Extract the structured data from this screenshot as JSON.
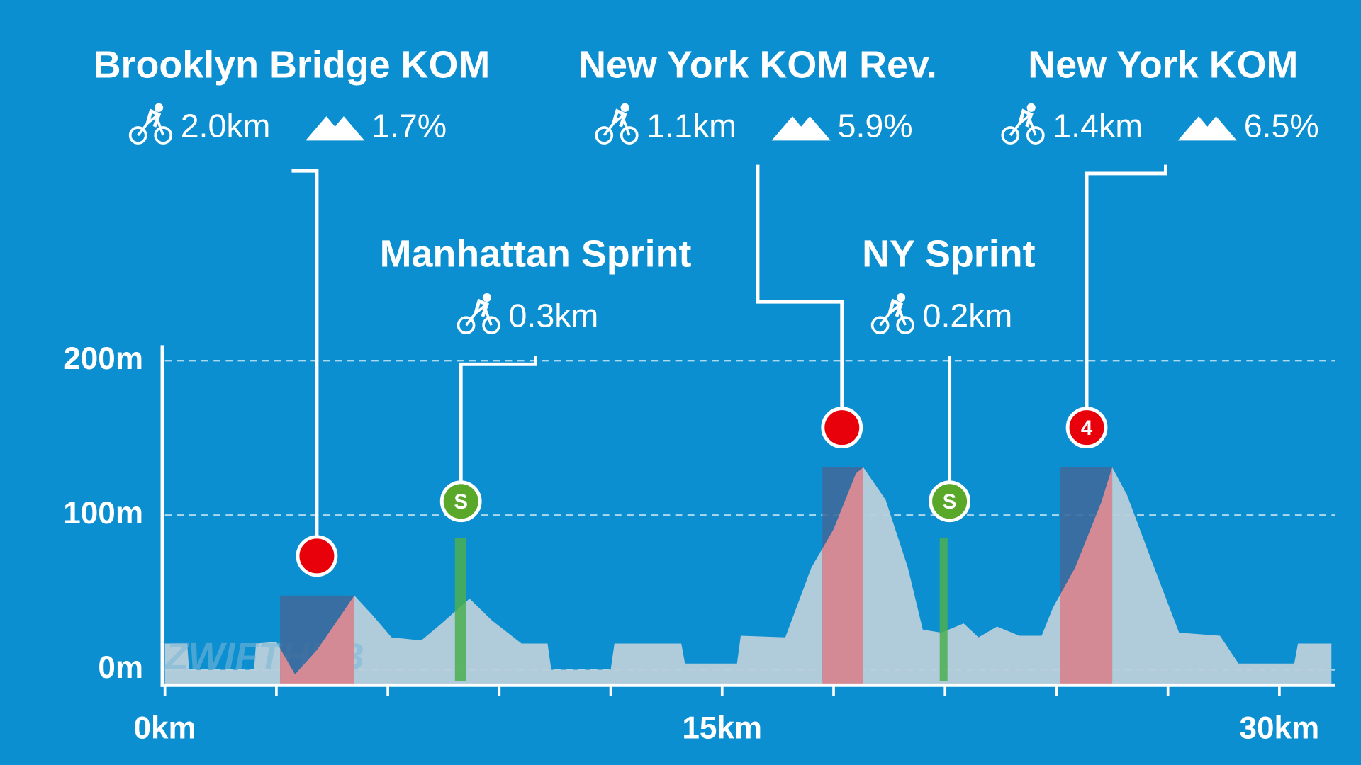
{
  "chart_data": {
    "type": "area",
    "watermark": "ZWIFTHUB",
    "x": [
      0,
      0.6,
      0.65,
      2.4,
      2.45,
      3.0,
      3.5,
      4.1,
      5.1,
      5.6,
      6.1,
      6.9,
      7.4,
      8.2,
      8.8,
      9.6,
      10.3,
      10.4,
      12.0,
      12.1,
      13.9,
      14.0,
      15.4,
      15.5,
      16.7,
      17.4,
      18.0,
      18.6,
      18.8,
      19.4,
      20.0,
      20.4,
      20.9,
      21.5,
      21.9,
      22.4,
      23.0,
      23.6,
      23.9,
      24.5,
      25.2,
      25.5,
      25.9,
      26.6,
      27.3,
      28.4,
      28.9,
      30.4,
      30.5,
      31.4
    ],
    "values": [
      17,
      17,
      0,
      0,
      17,
      18,
      -3,
      13,
      48,
      35,
      21,
      19,
      29,
      46,
      32,
      17,
      17,
      0,
      0,
      17,
      17,
      4,
      4,
      22,
      21,
      66,
      91,
      127,
      131,
      110,
      66,
      26,
      24,
      30,
      21,
      28,
      22,
      22,
      40,
      66,
      108,
      131,
      113,
      68,
      24,
      22,
      4,
      4,
      17,
      17
    ],
    "color": "#b9cfd9",
    "xlim": [
      0,
      31.5
    ],
    "ylim": [
      -10,
      210
    ],
    "xticks": [
      {
        "value": 0,
        "label": "0km"
      },
      {
        "value": 15,
        "label": "15km"
      },
      {
        "value": 30,
        "label": "30km"
      }
    ],
    "xminor_ticks": [
      3,
      6,
      9,
      12,
      18,
      21,
      24,
      27
    ],
    "yticks": [
      {
        "value": 0,
        "label": "0m"
      },
      {
        "value": 100,
        "label": "100m"
      },
      {
        "value": 200,
        "label": "200m"
      }
    ],
    "grid": true,
    "segments": [
      {
        "name": "Brooklyn Bridge KOM",
        "kind": "kom",
        "start": 3.1,
        "length": {
          "value": 2.0,
          "label": "2.0km"
        },
        "grade": {
          "value": 1.7,
          "label": "1.7%"
        }
      },
      {
        "name": "Manhattan Sprint",
        "kind": "sprint",
        "start": 7.9,
        "length": {
          "value": 0.3,
          "label": "0.3km"
        },
        "badge": "S"
      },
      {
        "name": "New York KOM Rev.",
        "kind": "kom",
        "start": 17.7,
        "length": {
          "value": 1.1,
          "label": "1.1km"
        },
        "grade": {
          "value": 5.9,
          "label": "5.9%"
        }
      },
      {
        "name": "NY Sprint",
        "kind": "sprint",
        "start": 20.95,
        "length": {
          "value": 0.2,
          "label": "0.2km"
        },
        "badge": "S"
      },
      {
        "name": "New York KOM",
        "kind": "kom",
        "start": 24.1,
        "length": {
          "value": 1.4,
          "label": "1.4km"
        },
        "grade": {
          "value": 6.5,
          "label": "6.5%"
        },
        "badge": "4"
      }
    ]
  }
}
